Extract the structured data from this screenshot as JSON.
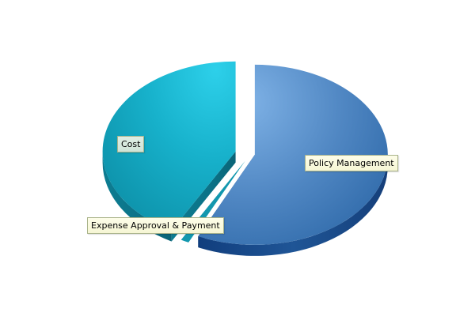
{
  "chart_data": {
    "type": "pie",
    "style": "3d-exploded",
    "categories": [
      "Policy Management",
      "Expense Approval & Payment",
      "Cost"
    ],
    "values": [
      57,
      1,
      42
    ],
    "value_unit": "percent",
    "colors": [
      "#5b8fc9",
      "#1297ae",
      "#17b4cf"
    ],
    "title": "",
    "legend": "none",
    "labels": [
      {
        "text": "Policy Management",
        "series_index": 0
      },
      {
        "text": "Expense Approval & Payment",
        "series_index": 1
      },
      {
        "text": "Cost",
        "series_index": 2
      }
    ]
  }
}
